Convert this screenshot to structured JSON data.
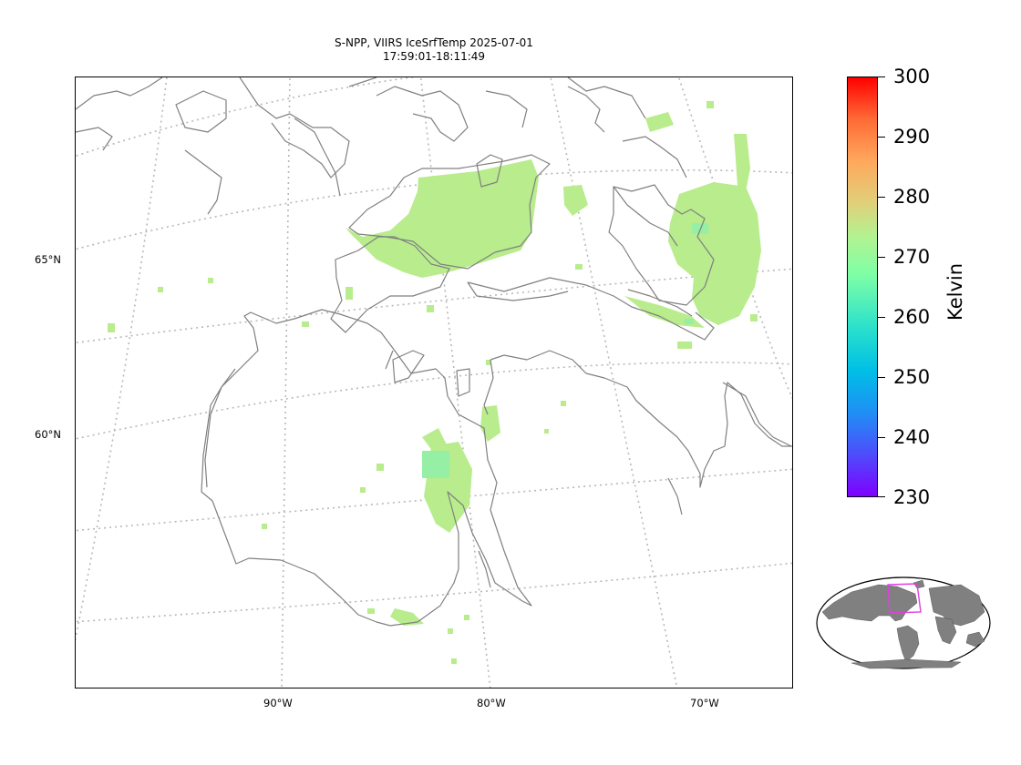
{
  "title": {
    "line1": "S-NPP, VIIRS IceSrfTemp 2025-07-01",
    "line2": "17:59:01-18:11:49"
  },
  "map": {
    "latitude_labels": [
      "65°N",
      "60°N"
    ],
    "longitude_labels": [
      "90°W",
      "80°W",
      "70°W"
    ],
    "coastline_color": "#808080",
    "gridline_color": "#b0b0b0",
    "data_color_main": "#b8ec8c",
    "data_color_cool": "#90f7a8"
  },
  "colorbar": {
    "label": "Kelvin",
    "ticks": [
      "300",
      "290",
      "280",
      "270",
      "260",
      "250",
      "240",
      "230"
    ],
    "range": [
      230,
      300
    ],
    "colormap": "rainbow"
  },
  "inset": {
    "name": "world-locator-map",
    "highlight_color": "#e040e0"
  }
}
